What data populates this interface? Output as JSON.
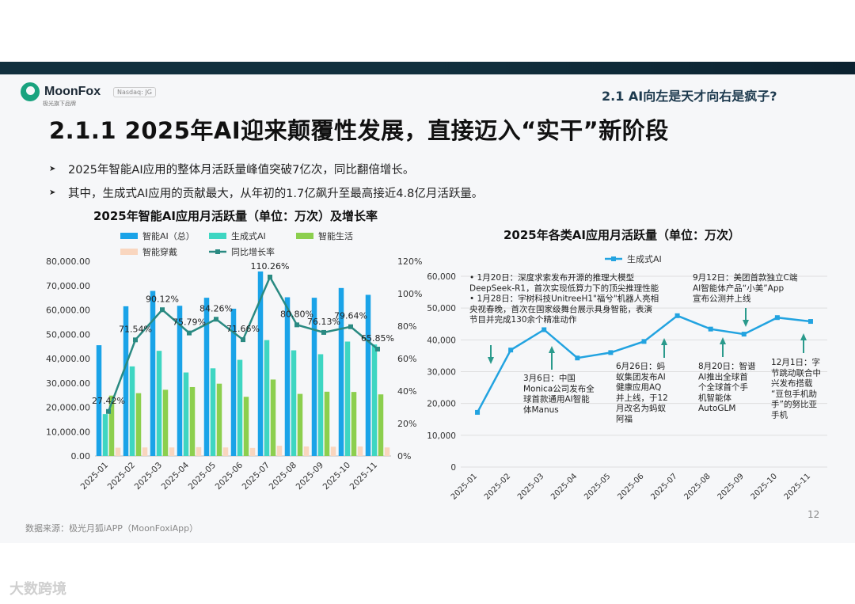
{
  "header": {
    "brand": "MoonFox",
    "brand_sub": "极光旗下品牌",
    "badge": "Nasdaq: JG",
    "section": "2.1 AI向左是天才向右是疯子?"
  },
  "title": "2.1.1 2025年AI迎来颠覆性发展，直接迈入“实干”新阶段",
  "bullets": [
    "2025年智能AI应用的整体月活跃量峰值突破7亿次，同比翻倍增长。",
    "其中，生成式AI应用的贡献最大，从年初的1.7亿飙升至最高接近4.8亿月活跃量。"
  ],
  "footer": {
    "source": "数据来源：极光月狐iAPP（MoonFoxiApp）",
    "page": "12",
    "watermark": "大数跨境"
  },
  "colors": {
    "total": "#1aa3e8",
    "generative": "#3ed6c2",
    "life": "#8ccf4e",
    "wearable": "#f9d6bf",
    "growth": "#2a8a82",
    "line2": "#22a3e0",
    "arrow": "#2a9a8c"
  },
  "chart_data": [
    {
      "type": "bar",
      "title": "2025年智能AI应用月活跃量（单位：万次）及增长率",
      "categories": [
        "2025-01",
        "2025-02",
        "2025-03",
        "2025-04",
        "2025-05",
        "2025-06",
        "2025-07",
        "2025-08",
        "2025-09",
        "2025-10",
        "2025-11"
      ],
      "series": [
        {
          "name": "智能AI（总）",
          "values": [
            45500,
            61500,
            67800,
            61700,
            65000,
            60500,
            75800,
            65200,
            65000,
            69000,
            66200
          ]
        },
        {
          "name": "生成式AI",
          "values": [
            17200,
            36800,
            43200,
            34300,
            36000,
            39500,
            47600,
            43400,
            41800,
            47000,
            45800
          ]
        },
        {
          "name": "智能生活",
          "values": [
            24800,
            25800,
            27200,
            28300,
            29700,
            24300,
            31400,
            25500,
            26400,
            26300,
            25300
          ]
        },
        {
          "name": "智能穿戴",
          "values": [
            3400,
            3500,
            3500,
            3600,
            3500,
            3300,
            4200,
            3900,
            3800,
            3900,
            3500
          ]
        },
        {
          "name": "同比增长率",
          "axis": "right",
          "values": [
            27.42,
            71.54,
            90.12,
            75.79,
            84.26,
            71.66,
            110.26,
            80.8,
            76.13,
            79.64,
            65.85
          ],
          "labels": [
            "27.42%",
            "71.54%",
            "90.12%",
            "75.79%",
            "84.26%",
            "71.66%",
            "110.26%",
            "80.80%",
            "76.13%",
            "79.64%",
            "65.85%"
          ]
        }
      ],
      "y_left": {
        "min": 0,
        "max": 80000,
        "ticks": [
          "0.00",
          "10,000.00",
          "20,000.00",
          "30,000.00",
          "40,000.00",
          "50,000.00",
          "60,000.00",
          "70,000.00",
          "80,000.00"
        ]
      },
      "y_right": {
        "min": 0,
        "max": 120,
        "ticks": [
          "0%",
          "20%",
          "40%",
          "60%",
          "80%",
          "100%",
          "120%"
        ]
      },
      "legend": "top",
      "grid": false
    },
    {
      "type": "line",
      "title": "2025年各类AI应用月活跃量（单位：万次）",
      "categories": [
        "2025-01",
        "2025-02",
        "2025-03",
        "2025-04",
        "2025-05",
        "2025-06",
        "2025-07",
        "2025-08",
        "2025-09",
        "2025-10",
        "2025-11"
      ],
      "series": [
        {
          "name": "生成式AI",
          "values": [
            17200,
            36800,
            43200,
            34300,
            36000,
            39500,
            47600,
            43400,
            41800,
            47000,
            45800
          ]
        }
      ],
      "y": {
        "min": 0,
        "max": 60000,
        "ticks": [
          "0",
          "10,000",
          "20,000",
          "30,000",
          "40,000",
          "50,000",
          "60,000"
        ]
      },
      "legend": "top",
      "grid": true,
      "annotations": [
        {
          "month": "2025-01",
          "arrow_at": 1,
          "lines": [
            "• 1月20日：深度求索发布开源的推理大模型",
            "  DeepSeek-R1，首次实现低算力下的顶尖推理性能",
            "• 1月28日：宇树科技UnitreeH1\"福兮\"机器人亮相",
            "  央视春晚，首次在国家级舞台展示具身智能，表演",
            "  节目并完成130余个精准动作"
          ]
        },
        {
          "month": "2025-03",
          "arrow_at": 3,
          "lines": [
            "3月6日：中国",
            "Monica公司发布全",
            "球首款通用AI智能",
            "体Manus"
          ]
        },
        {
          "month": "2025-06",
          "arrow_at": 7,
          "lines": [
            "6月26日：蚂",
            "蚁集团发布AI",
            "健康应用AQ",
            "并上线，于12",
            "月改名为蚂蚁",
            "阿福"
          ]
        },
        {
          "month": "2025-08",
          "arrow_at": 8,
          "lines": [
            "8月20日：智谱",
            "AI推出全球首",
            "个全球首个手",
            "机智能体",
            "AutoGLM"
          ]
        },
        {
          "month": "2025-09",
          "arrow_at": 9,
          "lines": [
            "9月12日：美团首款独立C端",
            "AI智能体产品“小美”App",
            "宣布公测并上线"
          ]
        },
        {
          "month": "2025-12",
          "arrow_at": 11,
          "lines": [
            "12月1日：字",
            "节跳动联合中",
            "兴发布搭载",
            "“豆包手机助",
            "手”的努比亚",
            "手机"
          ]
        }
      ]
    }
  ]
}
